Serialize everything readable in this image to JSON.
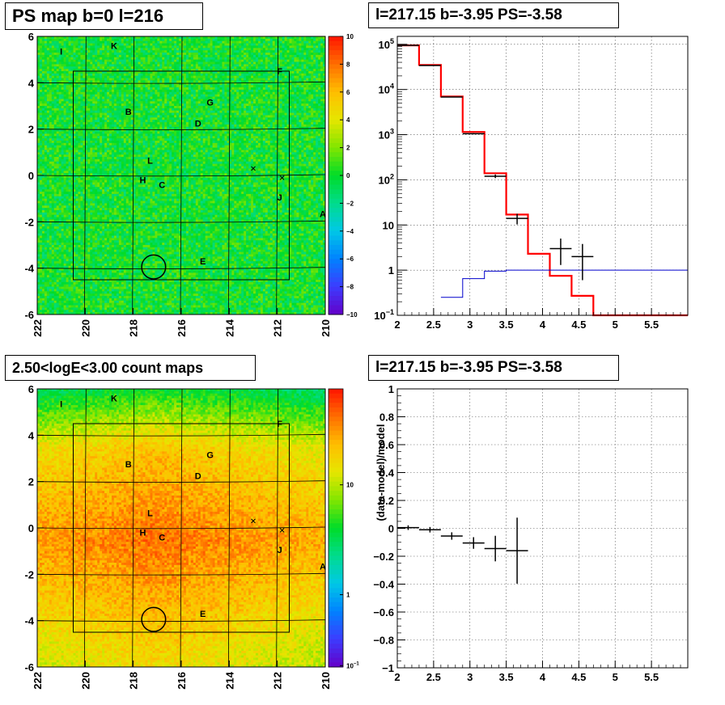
{
  "panels": {
    "ps_map": {
      "title": "PS map b=0 l=216"
    },
    "spectrum": {
      "title": "l=217.15 b=-3.95 PS=-3.58"
    },
    "count_map": {
      "title": "2.50<logE<3.00 count maps"
    },
    "residual": {
      "title": "l=217.15 b=-3.95 PS=-3.58"
    }
  },
  "sources": [
    {
      "name": "I",
      "l": 221.0,
      "b": 5.35
    },
    {
      "name": "K",
      "l": 218.8,
      "b": 5.6
    },
    {
      "name": "F",
      "l": 211.9,
      "b": 4.5
    },
    {
      "name": "G",
      "l": 214.8,
      "b": 3.15
    },
    {
      "name": "B",
      "l": 218.2,
      "b": 2.75
    },
    {
      "name": "D",
      "l": 215.3,
      "b": 2.25
    },
    {
      "name": "L",
      "l": 217.3,
      "b": 0.65
    },
    {
      "name": "H",
      "l": 217.6,
      "b": -0.2
    },
    {
      "name": "C",
      "l": 216.8,
      "b": -0.4
    },
    {
      "name": "J",
      "l": 211.9,
      "b": -0.95
    },
    {
      "name": "A",
      "l": 210.1,
      "b": -1.65
    },
    {
      "name": "E",
      "l": 215.1,
      "b": -3.7
    }
  ],
  "crosses": [
    {
      "l": 213.0,
      "b": 0.3
    },
    {
      "l": 211.8,
      "b": -0.1
    }
  ],
  "circle": {
    "l": 217.15,
    "b": -3.95,
    "r": 0.5
  },
  "roi": {
    "l_min": 211.5,
    "l_max": 220.5,
    "b_min": -4.5,
    "b_max": 4.5
  },
  "chart_data": [
    {
      "type": "heatmap",
      "title": "PS map b=0 l=216",
      "xlabel": "",
      "ylabel": "",
      "xlim": [
        222,
        210
      ],
      "ylim": [
        -6,
        6
      ],
      "x_ticks": [
        "222",
        "220",
        "218",
        "216",
        "214",
        "212",
        "210"
      ],
      "y_ticks": [
        "-6",
        "-4",
        "-2",
        "0",
        "2",
        "4",
        "6"
      ],
      "z_range": [
        -10,
        10
      ],
      "colorbar_ticks": [
        "10",
        "8",
        "6",
        "4",
        "2",
        "0",
        "−2",
        "−4",
        "−6",
        "−8",
        "−10"
      ],
      "dominant_value": 0,
      "grid": true
    },
    {
      "type": "line",
      "title": "l=217.15 b=-3.95 PS=-3.58",
      "xlabel": "",
      "ylabel": "",
      "xlim": [
        2,
        6
      ],
      "ylim": [
        0.1,
        150000
      ],
      "log_y": true,
      "x_ticks": [
        "2",
        "2.5",
        "3",
        "3.5",
        "4",
        "4.5",
        "5",
        "5.5"
      ],
      "y_ticks": [
        "10^5",
        "10^4",
        "10^3",
        "10^2",
        "10",
        "1",
        "10^-1"
      ],
      "grid": true,
      "series": [
        {
          "color": "#ff0000",
          "bins": [
            [
              2.0,
              2.3,
              95000
            ],
            [
              2.3,
              2.6,
              35000
            ],
            [
              2.6,
              2.9,
              7000
            ],
            [
              2.9,
              3.2,
              1150
            ],
            [
              3.2,
              3.5,
              140
            ],
            [
              3.5,
              3.8,
              17
            ],
            [
              3.8,
              4.1,
              2.3
            ],
            [
              4.1,
              4.4,
              0.75
            ],
            [
              4.4,
              4.7,
              0.27
            ],
            [
              4.7,
              6.0,
              0.1
            ]
          ]
        },
        {
          "color": "#0000cc",
          "bins": [
            [
              2.6,
              2.9,
              0.25
            ],
            [
              2.9,
              3.2,
              0.65
            ],
            [
              3.2,
              3.5,
              0.95
            ],
            [
              3.5,
              3.8,
              1.0
            ],
            [
              3.8,
              6.0,
              1.0
            ]
          ]
        },
        {
          "color": "#000000",
          "points": [
            {
              "x": 2.15,
              "y": 95000,
              "xerr": 0.15,
              "ylo": 94700,
              "yhi": 95300
            },
            {
              "x": 2.45,
              "y": 34000,
              "xerr": 0.15,
              "ylo": 33800,
              "yhi": 34200
            },
            {
              "x": 2.75,
              "y": 6800,
              "xerr": 0.15,
              "ylo": 6720,
              "yhi": 6880
            },
            {
              "x": 3.05,
              "y": 1050,
              "xerr": 0.15,
              "ylo": 1020,
              "yhi": 1080
            },
            {
              "x": 3.35,
              "y": 120,
              "xerr": 0.15,
              "ylo": 109,
              "yhi": 131
            },
            {
              "x": 3.65,
              "y": 14,
              "xerr": 0.15,
              "ylo": 10.3,
              "yhi": 17.7
            },
            {
              "x": 4.25,
              "y": 3.0,
              "xerr": 0.15,
              "ylo": 1.3,
              "yhi": 5.0
            },
            {
              "x": 4.55,
              "y": 2.0,
              "xerr": 0.15,
              "ylo": 0.6,
              "yhi": 3.8
            }
          ]
        }
      ]
    },
    {
      "type": "heatmap",
      "title": "2.50<logE<3.00 count maps",
      "xlabel": "",
      "ylabel": "",
      "xlim": [
        222,
        210
      ],
      "ylim": [
        -6,
        6
      ],
      "log_z": true,
      "x_ticks": [
        "222",
        "220",
        "218",
        "216",
        "214",
        "212",
        "210"
      ],
      "y_ticks": [
        "-6",
        "-4",
        "-2",
        "0",
        "2",
        "4",
        "6"
      ],
      "colorbar_ticks": [
        "10",
        "1",
        "10^-1"
      ],
      "grid": true
    },
    {
      "type": "scatter",
      "title": "l=217.15 b=-3.95 PS=-3.58",
      "xlabel": "",
      "ylabel": "(data-model)/model",
      "xlim": [
        2,
        6
      ],
      "ylim": [
        -1,
        1
      ],
      "x_ticks": [
        "2",
        "2.5",
        "3",
        "3.5",
        "4",
        "4.5",
        "5",
        "5.5"
      ],
      "y_ticks": [
        "1",
        "0.8",
        "0.6",
        "0.4",
        "0.2",
        "0",
        "−0.2",
        "−0.4",
        "−0.6",
        "−0.8",
        "−1"
      ],
      "grid": true,
      "points": [
        {
          "x": 2.15,
          "y": 0.005,
          "xerr": 0.15,
          "yerr": 0.005
        },
        {
          "x": 2.45,
          "y": -0.01,
          "xerr": 0.15,
          "yerr": 0.008
        },
        {
          "x": 2.75,
          "y": -0.055,
          "xerr": 0.15,
          "yerr": 0.015
        },
        {
          "x": 3.05,
          "y": -0.105,
          "xerr": 0.15,
          "yerr": 0.03
        },
        {
          "x": 3.35,
          "y": -0.145,
          "xerr": 0.15,
          "yerr": 0.08
        },
        {
          "x": 3.65,
          "y": -0.16,
          "xerr": 0.15,
          "yerr": 0.225
        }
      ]
    }
  ]
}
